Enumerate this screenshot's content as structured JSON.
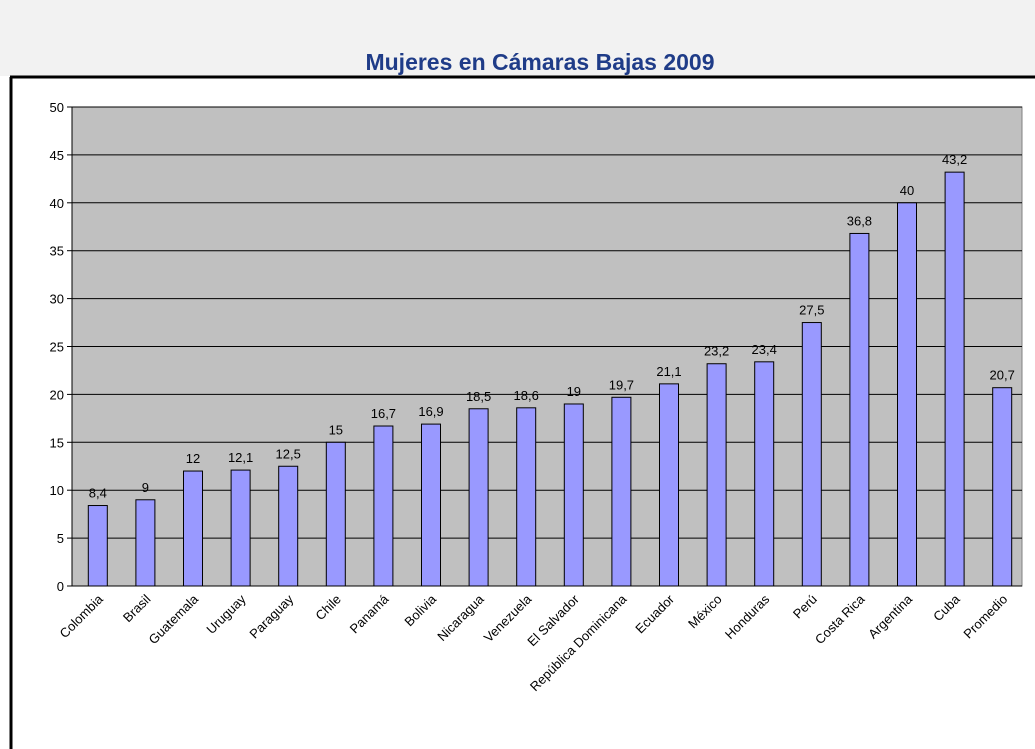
{
  "chart_data": {
    "type": "bar",
    "title": "Mujeres  en Cámaras Bajas 2009",
    "categories": [
      "Colombia",
      "Brasil",
      "Guatemala",
      "Uruguay",
      "Paraguay",
      "Chile",
      "Panamá",
      "Bolivia",
      "Nicaragua",
      "Venezuela",
      "El Salvador",
      "República Dominicana",
      "Ecuador",
      "México",
      "Honduras",
      "Perú",
      "Costa Rica",
      "Argentina",
      "Cuba",
      "Promedio"
    ],
    "values": [
      8.4,
      9,
      12,
      12.1,
      12.5,
      15,
      16.7,
      16.9,
      18.5,
      18.6,
      19,
      19.7,
      21.1,
      23.2,
      23.4,
      27.5,
      36.8,
      40,
      43.2,
      20.7
    ],
    "value_labels": [
      "8,4",
      "9",
      "12",
      "12,1",
      "12,5",
      "15",
      "16,7",
      "16,9",
      "18,5",
      "18,6",
      "19",
      "19,7",
      "21,1",
      "23,2",
      "23,4",
      "27,5",
      "36,8",
      "40",
      "43,2",
      "20,7"
    ],
    "color": "#9999ff",
    "ylim": [
      0,
      50
    ],
    "yticks": [
      0,
      5,
      10,
      15,
      20,
      25,
      30,
      35,
      40,
      45,
      50
    ],
    "grid": true
  }
}
